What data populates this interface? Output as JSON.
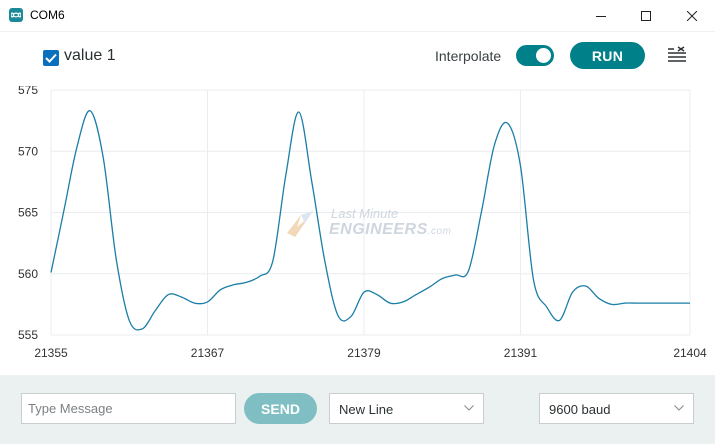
{
  "window": {
    "title": "COM6",
    "app_icon": "infinity-icon",
    "controls": [
      "minimize-icon",
      "maximize-icon",
      "close-icon"
    ]
  },
  "toolbar": {
    "series_label": "value 1",
    "series_checked": true,
    "interpolate_label": "Interpolate",
    "interpolate_on": true,
    "run_label": "RUN",
    "clear_icon": "clear-list-icon",
    "accent_color": "#00818a",
    "checkbox_color": "#0a6fbd"
  },
  "watermark": {
    "line1": "Last Minute",
    "line2": "ENGINEERS",
    "suffix": ".com"
  },
  "chart_data": {
    "type": "line",
    "x_ticks": [
      "21355",
      "21367",
      "21379",
      "21391",
      "21404"
    ],
    "y_ticks": [
      "575",
      "570",
      "565",
      "560",
      "555"
    ],
    "xlim": [
      21355,
      21404
    ],
    "ylim": [
      555,
      575
    ],
    "grid": true,
    "series": [
      {
        "name": "value 1",
        "color": "#1a7ea6",
        "x": [
          21355,
          21356,
          21357,
          21358,
          21359,
          21360,
          21361,
          21362,
          21363,
          21364,
          21365,
          21366,
          21367,
          21368,
          21369,
          21370,
          21371,
          21372,
          21373,
          21374,
          21375,
          21376,
          21377,
          21378,
          21379,
          21380,
          21381,
          21382,
          21383,
          21384,
          21385,
          21386,
          21387,
          21388,
          21389,
          21390,
          21391,
          21392,
          21393,
          21394,
          21395,
          21396,
          21397,
          21398,
          21399,
          21400,
          21401,
          21402,
          21403,
          21404
        ],
        "values": [
          560.1,
          565.2,
          570.4,
          573.3,
          569.5,
          561.2,
          556.2,
          555.5,
          557.0,
          558.3,
          558.1,
          557.6,
          557.7,
          558.7,
          559.1,
          559.3,
          559.8,
          561.0,
          568.0,
          573.2,
          567.5,
          561.0,
          556.6,
          556.5,
          558.5,
          558.3,
          557.6,
          557.7,
          558.3,
          558.9,
          559.6,
          559.9,
          560.2,
          565.0,
          570.5,
          572.3,
          568.8,
          559.5,
          557.3,
          556.2,
          558.5,
          559.0,
          558.0,
          557.5,
          557.6,
          557.6,
          557.6,
          557.6,
          557.6,
          557.6
        ]
      }
    ]
  },
  "footer": {
    "message_placeholder": "Type Message",
    "send_label": "SEND",
    "line_ending": "New Line",
    "baud_rate": "9600 baud"
  }
}
